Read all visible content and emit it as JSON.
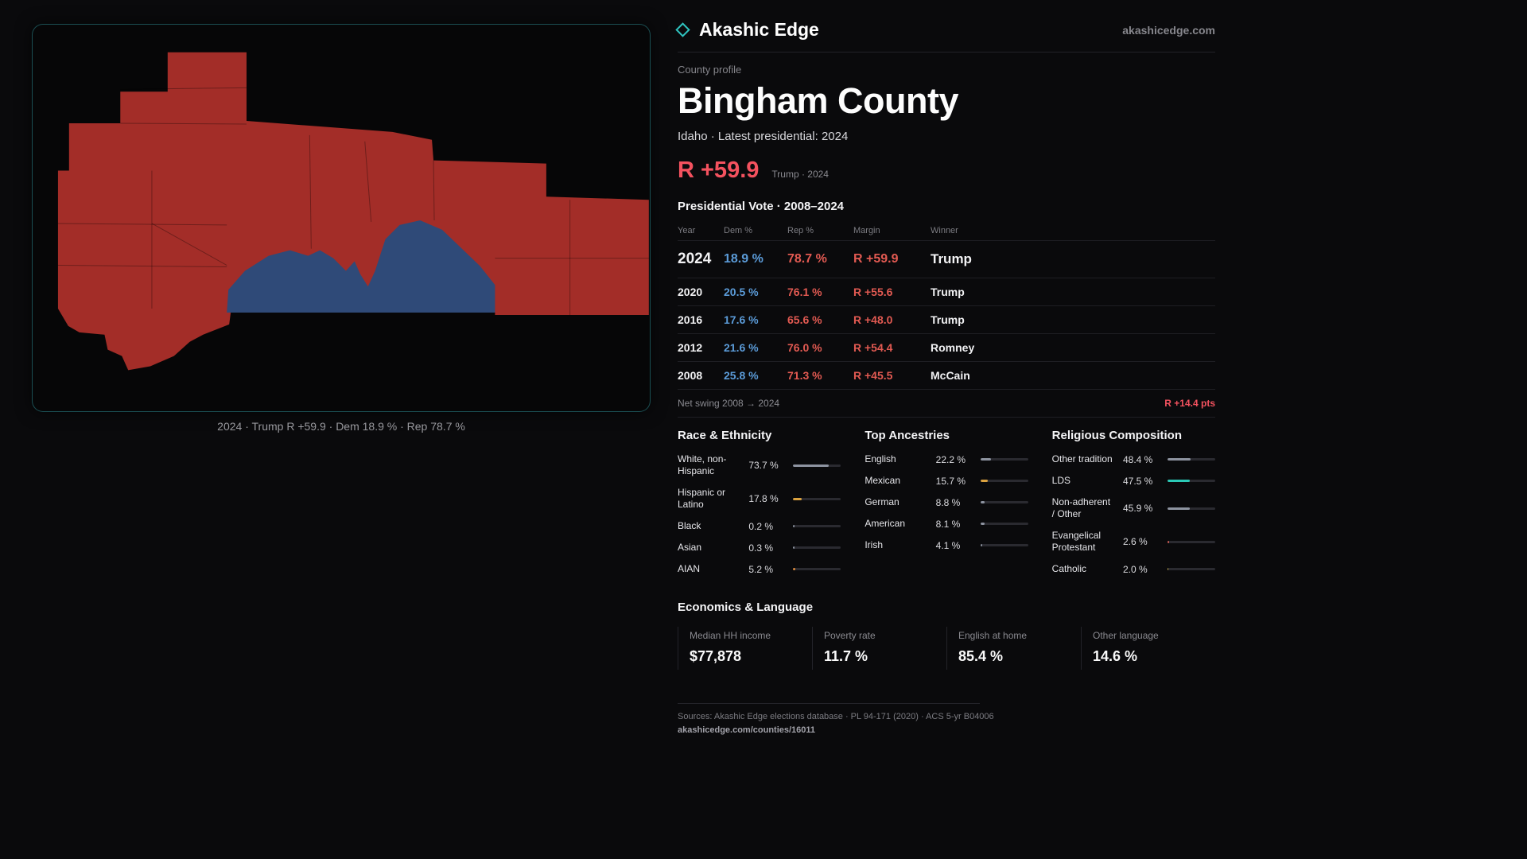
{
  "colors": {
    "background": "#0a0a0c",
    "map_republican": "#a32d28",
    "map_democrat": "#2f4a78",
    "accent_margin": "#f4525f",
    "dem_text": "#5b9bd8",
    "rep_text": "#e25a52",
    "teal_accent": "#2fc4c0",
    "muted_text": "#8a8a90"
  },
  "brand": {
    "name": "Akashic Edge",
    "domain": "akashicedge.com"
  },
  "map": {
    "caption": "2024 · Trump R +59.9 · Dem 18.9 % · Rep 78.7 %"
  },
  "profile": {
    "eyebrow": "County profile",
    "title": "Bingham County",
    "subtitle": "Idaho · Latest presidential: 2024",
    "margin_big": "R +59.9",
    "margin_context": "Trump · 2024"
  },
  "vote_table": {
    "title": "Presidential Vote · 2008–2024",
    "headers": [
      "Year",
      "Dem %",
      "Rep %",
      "Margin",
      "Winner"
    ],
    "rows": [
      {
        "year": "2024",
        "dem": "18.9 %",
        "rep": "78.7 %",
        "margin": "R +59.9",
        "winner": "Trump"
      },
      {
        "year": "2020",
        "dem": "20.5 %",
        "rep": "76.1 %",
        "margin": "R +55.6",
        "winner": "Trump"
      },
      {
        "year": "2016",
        "dem": "17.6 %",
        "rep": "65.6 %",
        "margin": "R +48.0",
        "winner": "Trump"
      },
      {
        "year": "2012",
        "dem": "21.6 %",
        "rep": "76.0 %",
        "margin": "R +54.4",
        "winner": "Romney"
      },
      {
        "year": "2008",
        "dem": "25.8 %",
        "rep": "71.3 %",
        "margin": "R +45.5",
        "winner": "McCain"
      }
    ],
    "net_swing_label": "Net swing 2008 → 2024",
    "net_swing_value": "R +14.4 pts"
  },
  "demographics": {
    "race": {
      "title": "Race & Ethnicity",
      "items": [
        {
          "label": "White, non-Hispanic",
          "value": "73.7 %",
          "pct": 73.7,
          "color": "#8d93a0"
        },
        {
          "label": "Hispanic or Latino",
          "value": "17.8 %",
          "pct": 17.8,
          "color": "#dba23f"
        },
        {
          "label": "Black",
          "value": "0.2 %",
          "pct": 0.2,
          "color": "#8d93a0"
        },
        {
          "label": "Asian",
          "value": "0.3 %",
          "pct": 0.3,
          "color": "#8d93a0"
        },
        {
          "label": "AIAN",
          "value": "5.2 %",
          "pct": 5.2,
          "color": "#dd8a3c"
        }
      ]
    },
    "ancestries": {
      "title": "Top Ancestries",
      "items": [
        {
          "label": "English",
          "value": "22.2 %",
          "pct": 22.2,
          "color": "#8d93a0"
        },
        {
          "label": "Mexican",
          "value": "15.7 %",
          "pct": 15.7,
          "color": "#dba23f"
        },
        {
          "label": "German",
          "value": "8.8 %",
          "pct": 8.8,
          "color": "#8d93a0"
        },
        {
          "label": "American",
          "value": "8.1 %",
          "pct": 8.1,
          "color": "#8d93a0"
        },
        {
          "label": "Irish",
          "value": "4.1 %",
          "pct": 4.1,
          "color": "#8d93a0"
        }
      ]
    },
    "religion": {
      "title": "Religious Composition",
      "items": [
        {
          "label": "Other tradition",
          "value": "48.4 %",
          "pct": 48.4,
          "color": "#8d93a0"
        },
        {
          "label": "LDS",
          "value": "47.5 %",
          "pct": 47.5,
          "color": "#2bc9b6"
        },
        {
          "label": "Non-adherent / Other",
          "value": "45.9 %",
          "pct": 45.9,
          "color": "#8d93a0"
        },
        {
          "label": "Evangelical Protestant",
          "value": "2.6 %",
          "pct": 2.6,
          "color": "#cf5a52"
        },
        {
          "label": "Catholic",
          "value": "2.0 %",
          "pct": 2.0,
          "color": "#c9b04a"
        }
      ]
    }
  },
  "economics": {
    "title": "Economics & Language",
    "stats": [
      {
        "label": "Median HH income",
        "value": "$77,878"
      },
      {
        "label": "Poverty rate",
        "value": "11.7 %"
      },
      {
        "label": "English at home",
        "value": "85.4 %"
      },
      {
        "label": "Other language",
        "value": "14.6 %"
      }
    ]
  },
  "footer": {
    "sources": "Sources: Akashic Edge elections database · PL 94-171 (2020) · ACS 5-yr B04006",
    "permalink": "akashicedge.com/counties/16011"
  }
}
